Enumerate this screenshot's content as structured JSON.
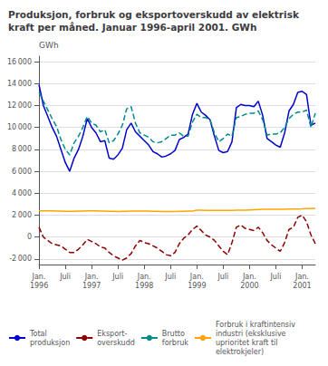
{
  "chart_data": {
    "type": "line",
    "title": "Produksjon, forbruk og eksportoverskudd av elektrisk\nkraft per måned. Januar 1996-april 2001. GWh",
    "ylabel": "GWh",
    "categories": [
      "Jan.\n1996",
      null,
      null,
      null,
      null,
      null,
      "Juli",
      null,
      null,
      null,
      null,
      null,
      "Jan.\n1997",
      null,
      null,
      null,
      null,
      null,
      "Juli",
      null,
      null,
      null,
      null,
      null,
      "Jan.\n1998",
      null,
      null,
      null,
      null,
      null,
      "Juli",
      null,
      null,
      null,
      null,
      null,
      "Jan.\n1999",
      null,
      null,
      null,
      null,
      null,
      "Juli",
      null,
      null,
      null,
      null,
      null,
      "Jan.\n2000",
      null,
      null,
      null,
      null,
      null,
      "Juli",
      null,
      null,
      null,
      null,
      null,
      "Jan.\n2001",
      null,
      null,
      null
    ],
    "series": [
      {
        "name": "Total\nproduksjon",
        "color": "#0000CD",
        "line_style": "solid",
        "values": [
          13900,
          12000,
          11000,
          10000,
          9200,
          8000,
          6800,
          6000,
          7200,
          8000,
          9200,
          10800,
          10000,
          9500,
          8700,
          8800,
          7200,
          7100,
          7500,
          8100,
          9800,
          10400,
          9600,
          9200,
          8800,
          8400,
          7800,
          7600,
          7300,
          7400,
          7600,
          7900,
          8900,
          9100,
          9400,
          11200,
          12200,
          11400,
          11100,
          10700,
          9200,
          7900,
          7700,
          7800,
          8700,
          11800,
          12100,
          12000,
          12000,
          11900,
          12400,
          11100,
          9000,
          8700,
          8400,
          8200,
          9500,
          11500,
          12100,
          13200,
          13300,
          13000,
          10200,
          10400
        ]
      },
      {
        "name": "Eksport-\noverskudd",
        "color": "#8B0000",
        "line_style": "dashed",
        "values": [
          900,
          0,
          -300,
          -600,
          -700,
          -800,
          -1100,
          -1400,
          -1400,
          -1100,
          -700,
          -200,
          -400,
          -600,
          -900,
          -1000,
          -1400,
          -1700,
          -1900,
          -2100,
          -1900,
          -1500,
          -800,
          -300,
          -500,
          -600,
          -800,
          -1000,
          -1300,
          -1600,
          -1700,
          -1400,
          -600,
          -100,
          200,
          700,
          1000,
          600,
          200,
          0,
          -300,
          -800,
          -1300,
          -1600,
          -500,
          900,
          1100,
          800,
          700,
          600,
          900,
          400,
          -300,
          -700,
          -1000,
          -1300,
          -500,
          700,
          900,
          1800,
          2000,
          1400,
          200,
          -600
        ]
      },
      {
        "name": "Brutto\nforbruk",
        "color": "#008B8B",
        "line_style": "dashed",
        "values": [
          13200,
          12400,
          11600,
          10800,
          10100,
          8900,
          8000,
          7500,
          8600,
          9200,
          10000,
          11000,
          10400,
          10200,
          9600,
          9800,
          8600,
          8800,
          9400,
          10200,
          11700,
          11900,
          10400,
          9500,
          9300,
          9100,
          8700,
          8600,
          8700,
          9000,
          9300,
          9300,
          9500,
          9200,
          9200,
          10500,
          11200,
          10900,
          10900,
          10700,
          9500,
          8700,
          9000,
          9400,
          9200,
          10900,
          11000,
          11200,
          11300,
          11300,
          11500,
          10700,
          9300,
          9400,
          9400,
          9500,
          10000,
          10800,
          11200,
          11400,
          11400,
          11600,
          10000,
          11300
        ]
      },
      {
        "name": "Forbruk i kraftintensiv\nindustri (eksklusive\nuprioritet kraft til\nelektrokjeler)",
        "color": "#FFA500",
        "line_style": "solid",
        "values": [
          2400,
          2400,
          2400,
          2390,
          2380,
          2370,
          2360,
          2350,
          2360,
          2370,
          2380,
          2390,
          2390,
          2390,
          2380,
          2370,
          2360,
          2350,
          2340,
          2350,
          2360,
          2370,
          2380,
          2380,
          2380,
          2380,
          2360,
          2350,
          2340,
          2330,
          2330,
          2340,
          2350,
          2360,
          2370,
          2380,
          2450,
          2450,
          2440,
          2440,
          2440,
          2430,
          2430,
          2430,
          2440,
          2450,
          2460,
          2460,
          2480,
          2500,
          2520,
          2530,
          2530,
          2530,
          2530,
          2530,
          2540,
          2550,
          2560,
          2570,
          2580,
          2600,
          2600,
          2620
        ]
      }
    ],
    "ylim": [
      -2500,
      16500
    ],
    "yticks": [
      {
        "value": -2000,
        "label": "-2 000"
      },
      0,
      {
        "value": 2000,
        "label": "2 000"
      },
      {
        "value": 4000,
        "label": "4 000"
      },
      {
        "value": 6000,
        "label": "6 000"
      },
      {
        "value": 8000,
        "label": "8 000"
      },
      {
        "value": 10000,
        "label": "10 000"
      },
      {
        "value": 12000,
        "label": "12 000"
      },
      {
        "value": 14000,
        "label": "14 000"
      },
      {
        "value": 16000,
        "label": "16 000"
      }
    ],
    "grid": true,
    "legend": "bottom"
  }
}
